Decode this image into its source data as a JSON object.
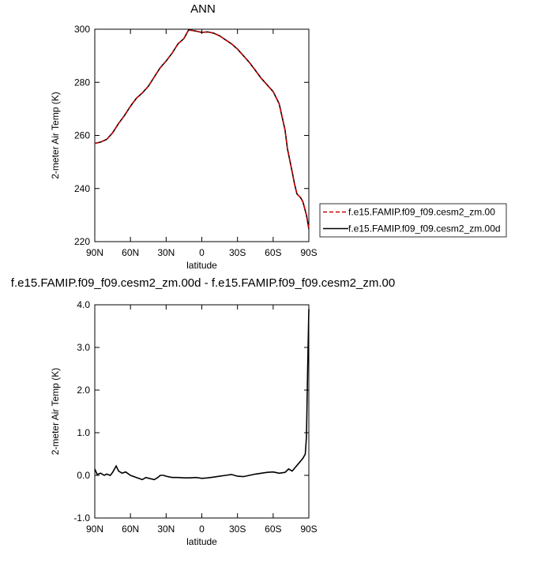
{
  "chart_data": [
    {
      "type": "line",
      "title": "ANN",
      "xlabel": "latitude",
      "ylabel": "2-meter Air Temp (K)",
      "xlim": [
        90,
        -90
      ],
      "xticks": [
        {
          "value": 90,
          "label": "90N"
        },
        {
          "value": 60,
          "label": "60N"
        },
        {
          "value": 30,
          "label": "30N"
        },
        0,
        {
          "value": -30,
          "label": "30S"
        },
        {
          "value": -60,
          "label": "60S"
        },
        {
          "value": -90,
          "label": "90S"
        }
      ],
      "ylim": [
        220,
        300
      ],
      "yticks": [
        220,
        240,
        260,
        280,
        300
      ],
      "x": [
        90,
        85,
        80,
        75,
        70,
        65,
        60,
        55,
        50,
        45,
        40,
        35,
        30,
        25,
        20,
        15,
        11,
        5,
        0,
        -5,
        -10,
        -15,
        -20,
        -25,
        -30,
        -35,
        -40,
        -45,
        -50,
        -55,
        -60,
        -65,
        -70,
        -72,
        -75,
        -78,
        -80,
        -83,
        -85,
        -88,
        -90
      ],
      "series": [
        {
          "name": "f.e15.FAMIP.f09_f09.cesm2_zm.00",
          "color": "#cc0000",
          "dash": true,
          "values": [
            257,
            257.5,
            258.5,
            261,
            264.5,
            267.5,
            271,
            274,
            276,
            278.5,
            282,
            285.5,
            288,
            291,
            294.5,
            296.5,
            299.8,
            299.3,
            298.8,
            299,
            298.5,
            297.5,
            296,
            294.5,
            292.5,
            290,
            287.5,
            284.5,
            281.5,
            279,
            276.5,
            272,
            262,
            255,
            248.5,
            241.7,
            238,
            236.6,
            235,
            230,
            224.8
          ]
        },
        {
          "name": "f.e15.FAMIP.f09_f09.cesm2_zm.00d",
          "color": "#000000",
          "dash": false,
          "values": [
            257,
            257.5,
            258.5,
            261,
            264.5,
            267.5,
            271,
            274,
            276,
            278.5,
            282,
            285.5,
            288,
            291,
            294.5,
            296.5,
            299.8,
            299.3,
            298.8,
            299,
            298.5,
            297.5,
            296,
            294.5,
            292.5,
            290,
            287.5,
            284.5,
            281.5,
            279,
            276.5,
            272,
            262,
            255,
            248.5,
            241.7,
            238,
            236.6,
            235,
            230,
            224.8
          ]
        }
      ]
    },
    {
      "type": "line",
      "title": "f.e15.FAMIP.f09_f09.cesm2_zm.00d - f.e15.FAMIP.f09_f09.cesm2_zm.00",
      "xlabel": "latitude",
      "ylabel": "2-meter Air Temp (K)",
      "xlim": [
        90,
        -90
      ],
      "xticks": [
        {
          "value": 90,
          "label": "90N"
        },
        {
          "value": 60,
          "label": "60N"
        },
        {
          "value": 30,
          "label": "30N"
        },
        0,
        {
          "value": -30,
          "label": "30S"
        },
        {
          "value": -60,
          "label": "60S"
        },
        {
          "value": -90,
          "label": "90S"
        }
      ],
      "ylim": [
        -1,
        4
      ],
      "yticks": [
        {
          "value": -1,
          "label": "-1.0"
        },
        {
          "value": 0,
          "label": "0.0"
        },
        {
          "value": 1,
          "label": "1.0"
        },
        {
          "value": 2,
          "label": "2.0"
        },
        {
          "value": 3,
          "label": "3.0"
        },
        {
          "value": 4,
          "label": "4.0"
        }
      ],
      "color": "#000000",
      "x": [
        90,
        88,
        85,
        82,
        80,
        77,
        75,
        72,
        70,
        67,
        64,
        60,
        55,
        50,
        47,
        43,
        40,
        37,
        35,
        32,
        30,
        25,
        20,
        15,
        10,
        5,
        0,
        -5,
        -10,
        -15,
        -20,
        -25,
        -30,
        -35,
        -40,
        -45,
        -50,
        -55,
        -60,
        -65,
        -70,
        -73,
        -76,
        -79,
        -82,
        -85,
        -87,
        -88,
        -89,
        -90
      ],
      "values": [
        0.15,
        0.02,
        0.05,
        0,
        0.03,
        0,
        0.07,
        0.22,
        0.1,
        0.05,
        0.08,
        0,
        -0.05,
        -0.1,
        -0.05,
        -0.08,
        -0.1,
        -0.05,
        0,
        0,
        -0.02,
        -0.05,
        -0.05,
        -0.06,
        -0.06,
        -0.05,
        -0.07,
        -0.06,
        -0.04,
        -0.02,
        0,
        0.02,
        -0.02,
        -0.03,
        0,
        0.03,
        0.05,
        0.07,
        0.08,
        0.05,
        0.07,
        0.15,
        0.1,
        0.2,
        0.3,
        0.4,
        0.5,
        0.9,
        2.5,
        3.9
      ]
    }
  ]
}
